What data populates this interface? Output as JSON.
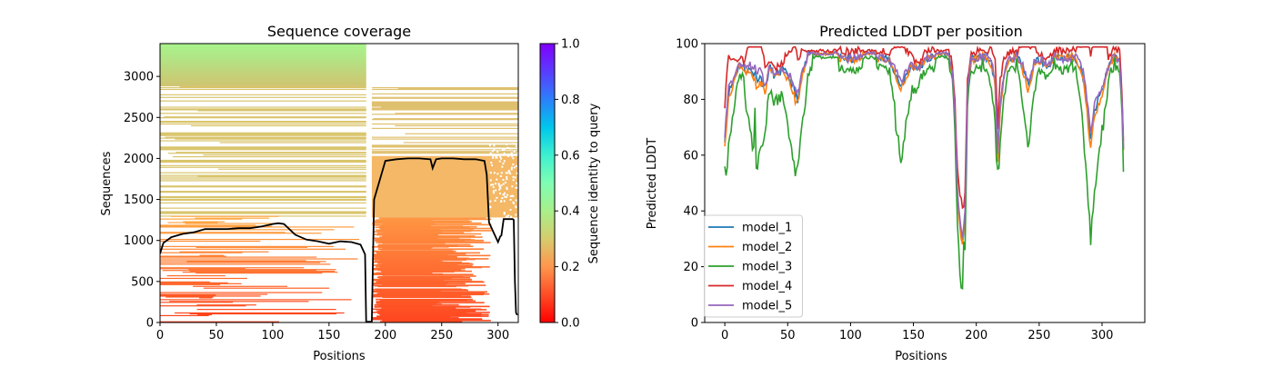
{
  "chart_data": [
    {
      "type": "heatmap",
      "title": "Sequence coverage",
      "xlabel": "Positions",
      "ylabel": "Sequences",
      "xlim": [
        0,
        318
      ],
      "ylim": [
        0,
        3400
      ],
      "x_ticks": [
        0,
        50,
        100,
        150,
        200,
        250,
        300
      ],
      "y_ticks": [
        0,
        500,
        1000,
        1500,
        2000,
        2500,
        3000
      ],
      "colorbar": {
        "label": "Sequence identity to query",
        "range": [
          0.0,
          1.0
        ],
        "ticks": [
          "0.0",
          "0.2",
          "0.4",
          "0.6",
          "0.8",
          "1.0"
        ],
        "colormap": "rainbow_r"
      },
      "coverage_line": {
        "x": [
          0,
          3,
          10,
          20,
          30,
          40,
          50,
          60,
          70,
          80,
          90,
          100,
          105,
          110,
          120,
          130,
          140,
          150,
          160,
          170,
          178,
          182,
          183,
          184,
          186,
          187,
          188,
          190,
          200,
          210,
          220,
          230,
          240,
          242,
          245,
          250,
          260,
          270,
          280,
          288,
          290,
          292,
          295,
          300,
          302,
          303,
          305,
          310,
          313,
          314,
          315,
          316,
          317
        ],
        "y": [
          840,
          970,
          1040,
          1080,
          1100,
          1140,
          1140,
          1140,
          1150,
          1150,
          1170,
          1200,
          1210,
          1200,
          1070,
          1010,
          990,
          960,
          990,
          980,
          950,
          830,
          10,
          10,
          10,
          10,
          10,
          1500,
          1970,
          1990,
          2000,
          2000,
          1990,
          1880,
          1990,
          2000,
          2000,
          1990,
          1990,
          1970,
          1800,
          1220,
          1130,
          980,
          1050,
          1060,
          1260,
          1260,
          1260,
          1250,
          500,
          120,
          90
        ]
      },
      "color": "#000000"
    },
    {
      "type": "line",
      "title": "Predicted LDDT per position",
      "xlabel": "Positions",
      "ylabel": "Predicted LDDT",
      "xlim": [
        -16,
        334
      ],
      "ylim": [
        0,
        100
      ],
      "x_ticks": [
        0,
        50,
        100,
        150,
        200,
        250,
        300
      ],
      "y_ticks": [
        0,
        20,
        40,
        60,
        80,
        100
      ],
      "legend_position": "lower-left",
      "series": [
        {
          "name": "model_1",
          "color": "#1f77b4"
        },
        {
          "name": "model_2",
          "color": "#ff7f0e"
        },
        {
          "name": "model_3",
          "color": "#2ca02c"
        },
        {
          "name": "model_4",
          "color": "#d62728"
        },
        {
          "name": "model_5",
          "color": "#9467bd"
        }
      ]
    }
  ]
}
